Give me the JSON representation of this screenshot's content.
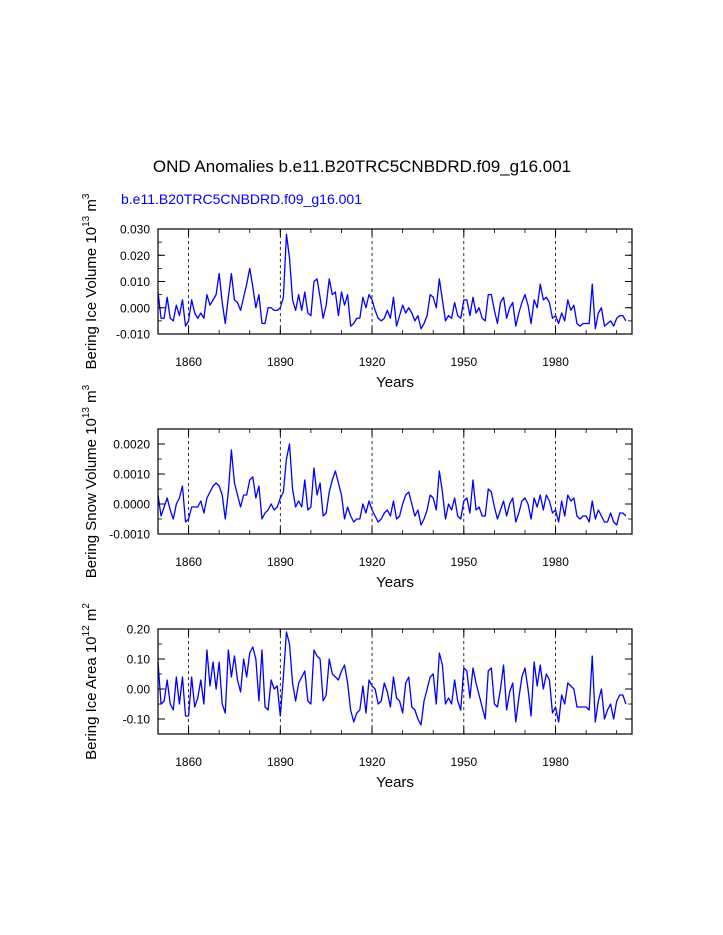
{
  "title": "OND Anomalies b.e11.B20TRC5CNBDRD.f09_g16.001",
  "subtitle": "b.e11.B20TRC5CNBDRD.f09_g16.001",
  "colors": {
    "line": "#0000ff",
    "subtitle": "#0000ff",
    "axis": "#000000",
    "grid": "#000000"
  },
  "chart_data": [
    {
      "type": "line",
      "ylabel": "Bering Ice Volume 10",
      "ylabel_exp": "13",
      "ylabel_unit": " m",
      "ylabel_unit_exp": "3",
      "xlabel": "Years",
      "xlim": [
        1850,
        2005
      ],
      "ylim": [
        -0.01,
        0.03
      ],
      "yticks": [
        "0.030",
        "0.020",
        "0.010",
        "0.000",
        "-0.010"
      ],
      "ytick_values": [
        0.03,
        0.02,
        0.01,
        0.0,
        -0.01
      ],
      "xticks": [
        "1860",
        "1890",
        "1920",
        "1950",
        "1980"
      ],
      "xtick_values": [
        1860,
        1890,
        1920,
        1950,
        1980
      ],
      "series": [
        {
          "name": "b.e11.B20TRC5CNBDRD.f09_g16.001",
          "start_year": 1850,
          "values": [
            0.006,
            -0.004,
            -0.004,
            0.004,
            -0.004,
            -0.005,
            0.001,
            -0.003,
            0.003,
            -0.007,
            -0.005,
            0.003,
            -0.002,
            -0.004,
            -0.002,
            -0.004,
            0.005,
            0.001,
            0.003,
            0.005,
            0.013,
            0.002,
            -0.006,
            0.004,
            0.013,
            0.003,
            0.002,
            -0.001,
            0.004,
            0.009,
            0.015,
            0.008,
            0.0,
            0.005,
            -0.006,
            -0.006,
            0.0,
            0.0,
            -0.001,
            -0.001,
            0.0,
            0.004,
            0.028,
            0.019,
            0.003,
            -0.001,
            0.005,
            -0.001,
            0.006,
            -0.002,
            -0.003,
            0.01,
            0.011,
            0.004,
            -0.004,
            0.001,
            0.011,
            0.005,
            0.006,
            -0.003,
            0.006,
            0.001,
            0.005,
            -0.007,
            -0.006,
            -0.004,
            -0.004,
            0.004,
            0.0,
            0.005,
            0.003,
            -0.001,
            -0.004,
            -0.005,
            -0.004,
            -0.001,
            -0.004,
            0.004,
            -0.007,
            -0.003,
            0.001,
            -0.002,
            0.0,
            -0.002,
            -0.005,
            -0.003,
            -0.008,
            -0.006,
            -0.003,
            0.005,
            0.004,
            0.0,
            0.011,
            0.003,
            -0.005,
            -0.003,
            -0.004,
            0.002,
            -0.003,
            -0.004,
            0.003,
            0.003,
            -0.003,
            0.004,
            -0.002,
            0.0,
            -0.004,
            -0.005,
            0.005,
            0.005,
            -0.001,
            -0.006,
            0.002,
            0.004,
            -0.004,
            0.0,
            0.002,
            -0.007,
            -0.002,
            0.002,
            0.005,
            0.001,
            -0.006,
            0.003,
            0.0,
            0.009,
            0.003,
            0.004,
            0.002,
            -0.004,
            -0.003,
            -0.006,
            -0.002,
            -0.005,
            0.003,
            -0.001,
            0.001,
            -0.006,
            -0.007,
            -0.006,
            -0.006,
            -0.006,
            0.009,
            -0.008,
            -0.002,
            0.0,
            -0.007,
            -0.006,
            -0.005,
            -0.007,
            -0.004,
            -0.003,
            -0.003,
            -0.005
          ]
        }
      ]
    },
    {
      "type": "line",
      "ylabel": "Bering Snow Volume 10",
      "ylabel_exp": "13",
      "ylabel_unit": " m",
      "ylabel_unit_exp": "3",
      "xlabel": "Years",
      "xlim": [
        1850,
        2005
      ],
      "ylim": [
        -0.001,
        0.0025
      ],
      "yticks": [
        "0.0020",
        "0.0010",
        "0.0000",
        "-0.0010"
      ],
      "ytick_values": [
        0.002,
        0.001,
        0.0,
        -0.001
      ],
      "xticks": [
        "1860",
        "1890",
        "1920",
        "1950",
        "1980"
      ],
      "xtick_values": [
        1860,
        1890,
        1920,
        1950,
        1980
      ],
      "series": [
        {
          "name": "b.e11.B20TRC5CNBDRD.f09_g16.001",
          "start_year": 1850,
          "values": [
            0.0003,
            -0.0004,
            -0.0001,
            0.0002,
            -0.0002,
            -0.0005,
            0.0,
            0.0002,
            0.0006,
            -0.0006,
            -0.0005,
            -0.0001,
            -0.0001,
            -0.0001,
            0.0001,
            -0.0003,
            0.0002,
            0.0004,
            0.0006,
            0.0007,
            0.0006,
            0.0003,
            -0.0005,
            0.0004,
            0.0018,
            0.0007,
            0.0003,
            -0.0001,
            0.0003,
            0.0003,
            0.0008,
            0.0009,
            0.0002,
            0.0006,
            -0.0005,
            -0.0003,
            -0.0002,
            0.0,
            -0.0002,
            -0.0001,
            0.0002,
            0.0004,
            0.0015,
            0.002,
            0.0005,
            -0.0001,
            0.0001,
            -0.0001,
            0.0008,
            -0.0002,
            -0.0001,
            0.0012,
            0.0003,
            0.0007,
            -0.0004,
            -0.0003,
            0.0004,
            0.0008,
            0.0011,
            0.0007,
            0.0003,
            -0.0005,
            -0.0001,
            -0.0004,
            -0.0006,
            -0.0005,
            -0.0005,
            0.0,
            -0.0003,
            0.0001,
            -0.0002,
            -0.0004,
            -0.0006,
            -0.0005,
            -0.0003,
            -0.0002,
            -0.0004,
            0.0001,
            -0.0005,
            -0.0004,
            0.0,
            0.0003,
            0.0004,
            0.0,
            -0.0004,
            -0.0002,
            -0.0007,
            -0.0005,
            -0.0002,
            0.0003,
            0.0002,
            -0.0002,
            0.0011,
            0.0004,
            -0.0005,
            0.0,
            -0.0002,
            0.0002,
            -0.0004,
            -0.0005,
            0.0001,
            0.0002,
            -0.0003,
            0.0008,
            -0.0002,
            -0.0001,
            -0.0004,
            -0.0004,
            0.0005,
            0.0004,
            -0.0001,
            -0.0005,
            -0.0002,
            0.0001,
            -0.0004,
            0.0,
            0.0002,
            -0.0006,
            -0.0003,
            0.0001,
            0.0002,
            0.0,
            -0.0005,
            0.0002,
            -0.0001,
            0.0003,
            -0.0002,
            0.0003,
            0.0001,
            -0.0003,
            -0.0002,
            -0.0006,
            0.0001,
            -0.0004,
            0.0003,
            0.0001,
            0.0002,
            -0.0004,
            -0.0005,
            -0.0004,
            -0.0004,
            -0.0006,
            0.0001,
            -0.0005,
            -0.0002,
            -0.0004,
            -0.0006,
            -0.0006,
            -0.0003,
            -0.0006,
            -0.0007,
            -0.0003,
            -0.0003,
            -0.0004
          ]
        }
      ]
    },
    {
      "type": "line",
      "ylabel": "Bering Ice Area 10",
      "ylabel_exp": "12",
      "ylabel_unit": " m",
      "ylabel_unit_exp": "2",
      "xlabel": "Years",
      "xlim": [
        1850,
        2005
      ],
      "ylim": [
        -0.15,
        0.2
      ],
      "yticks": [
        "0.20",
        "0.10",
        "0.00",
        "-0.10"
      ],
      "ytick_values": [
        0.2,
        0.1,
        0.0,
        -0.1
      ],
      "xticks": [
        "1860",
        "1890",
        "1920",
        "1950",
        "1980"
      ],
      "xtick_values": [
        1860,
        1890,
        1920,
        1950,
        1980
      ],
      "series": [
        {
          "name": "b.e11.B20TRC5CNBDRD.f09_g16.001",
          "start_year": 1850,
          "values": [
            0.09,
            -0.05,
            -0.04,
            0.03,
            -0.05,
            -0.07,
            0.04,
            -0.05,
            0.04,
            -0.09,
            -0.09,
            0.04,
            -0.06,
            -0.03,
            0.03,
            -0.05,
            0.13,
            0.01,
            0.09,
            0.0,
            0.09,
            -0.05,
            -0.08,
            0.13,
            0.04,
            0.11,
            0.03,
            -0.01,
            0.1,
            0.04,
            0.12,
            0.14,
            0.1,
            -0.04,
            0.13,
            -0.06,
            -0.07,
            0.03,
            0.0,
            0.01,
            -0.09,
            0.04,
            0.19,
            0.15,
            0.02,
            -0.04,
            0.02,
            0.04,
            0.06,
            -0.04,
            -0.05,
            0.13,
            0.11,
            0.1,
            -0.04,
            -0.02,
            0.1,
            0.05,
            0.04,
            0.03,
            0.06,
            0.08,
            0.02,
            -0.07,
            -0.11,
            -0.08,
            -0.07,
            0.01,
            -0.08,
            0.03,
            0.01,
            0.0,
            -0.05,
            -0.04,
            0.02,
            -0.01,
            -0.06,
            0.04,
            -0.03,
            -0.04,
            -0.08,
            0.02,
            0.04,
            -0.06,
            -0.07,
            -0.1,
            -0.12,
            -0.04,
            0.0,
            0.04,
            0.05,
            -0.05,
            0.12,
            0.08,
            -0.05,
            -0.03,
            -0.05,
            0.03,
            -0.04,
            -0.07,
            0.07,
            0.06,
            -0.03,
            0.07,
            0.02,
            -0.02,
            -0.06,
            -0.1,
            0.06,
            0.07,
            -0.05,
            -0.06,
            0.0,
            0.08,
            -0.07,
            -0.01,
            0.02,
            -0.11,
            -0.03,
            0.04,
            0.07,
            0.0,
            -0.09,
            0.09,
            0.01,
            0.08,
            0.0,
            0.05,
            0.03,
            -0.08,
            -0.06,
            -0.11,
            -0.02,
            -0.05,
            0.02,
            0.01,
            0.0,
            -0.06,
            -0.06,
            -0.06,
            -0.06,
            -0.07,
            0.11,
            -0.11,
            -0.04,
            0.0,
            -0.1,
            -0.07,
            -0.05,
            -0.1,
            -0.04,
            -0.02,
            -0.02,
            -0.05
          ]
        }
      ]
    }
  ]
}
